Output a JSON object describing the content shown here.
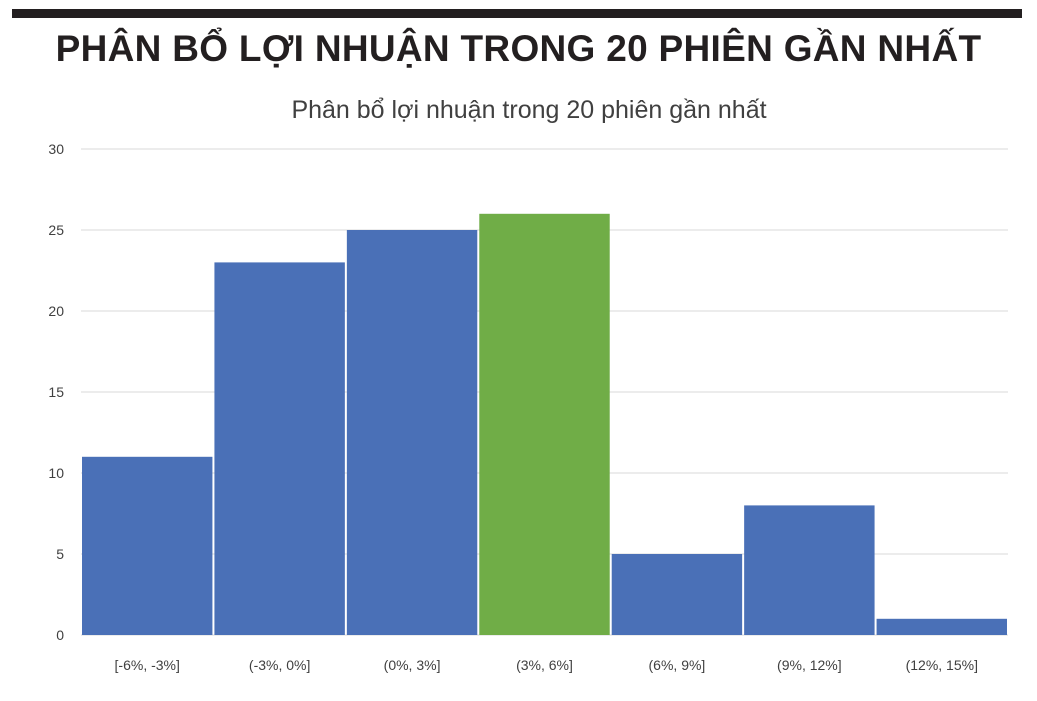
{
  "header": {
    "headline": "PHÂN BỔ LỢI NHUẬN TRONG 20 PHIÊN GẦN NHẤT"
  },
  "colors": {
    "bar": "#4a70b7",
    "highlight": "#70ad47",
    "grid": "#d9d9d9",
    "rule": "#231f20"
  },
  "chart_data": {
    "type": "bar",
    "title": "Phân bổ lợi nhuận trong 20 phiên gần nhất",
    "xlabel": "",
    "ylabel": "",
    "categories": [
      "[-6%, -3%]",
      "(-3%, 0%]",
      "(0%, 3%]",
      "(3%, 6%]",
      "(6%, 9%]",
      "(9%, 12%]",
      "(12%, 15%]"
    ],
    "values": [
      11,
      23,
      25,
      26,
      5,
      8,
      1
    ],
    "highlight_category": "(3%, 6%]",
    "ylim": [
      0,
      30
    ],
    "yticks": [
      0,
      5,
      10,
      15,
      20,
      25,
      30
    ],
    "grid": true,
    "legend": "none"
  }
}
